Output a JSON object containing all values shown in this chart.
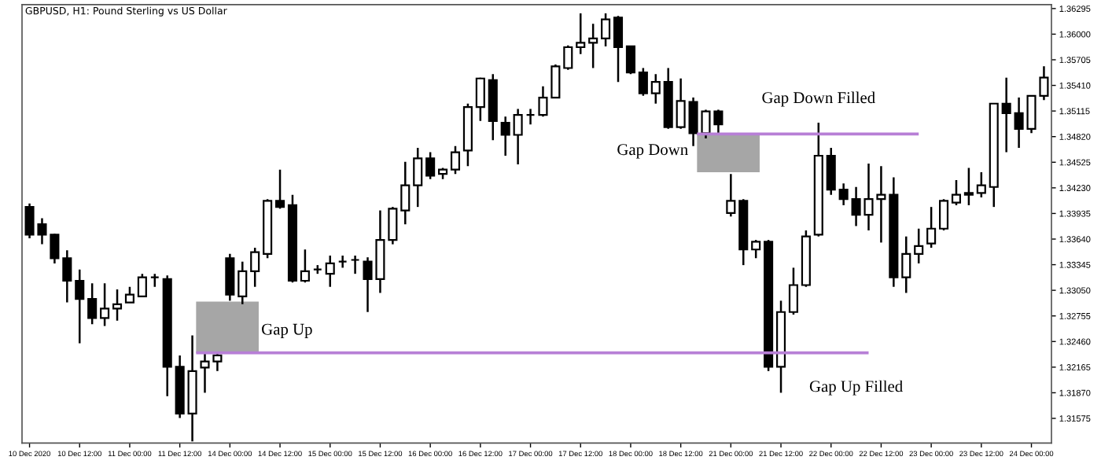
{
  "chart_data": {
    "type": "candlestick",
    "title": "GBPUSD, H1: Pound Sterling vs US Dollar",
    "categories": [
      "10 Dec 2020",
      null,
      null,
      null,
      "10 Dec 12:00",
      null,
      null,
      null,
      "11 Dec 00:00",
      null,
      null,
      null,
      "11 Dec 12:00",
      null,
      null,
      null,
      "14 Dec 00:00",
      null,
      null,
      null,
      "14 Dec 12:00",
      null,
      null,
      null,
      "15 Dec 00:00",
      null,
      null,
      null,
      "15 Dec 12:00",
      null,
      null,
      null,
      "16 Dec 00:00",
      null,
      null,
      null,
      "16 Dec 12:00",
      null,
      null,
      null,
      "17 Dec 00:00",
      null,
      null,
      null,
      "17 Dec 12:00",
      null,
      null,
      null,
      "18 Dec 00:00",
      null,
      null,
      null,
      "18 Dec 12:00",
      null,
      null,
      null,
      "21 Dec 00:00",
      null,
      null,
      null,
      "21 Dec 12:00",
      null,
      null,
      null,
      "22 Dec 00:00",
      null,
      null,
      null,
      "22 Dec 12:00",
      null,
      null,
      null,
      "23 Dec 00:00",
      null,
      null,
      null,
      "23 Dec 12:00",
      null,
      null,
      null,
      "24 Dec 00:00",
      null
    ],
    "ohlc": [
      [
        1.3401,
        1.3405,
        1.3365,
        1.3369
      ],
      [
        1.3381,
        1.3388,
        1.3358,
        1.3369
      ],
      [
        1.3369,
        1.337,
        1.3336,
        1.3342
      ],
      [
        1.3342,
        1.3351,
        1.3291,
        1.3316
      ],
      [
        1.3316,
        1.3329,
        1.3244,
        1.3295
      ],
      [
        1.3295,
        1.3313,
        1.3266,
        1.3273
      ],
      [
        1.3273,
        1.3313,
        1.3264,
        1.3284
      ],
      [
        1.3284,
        1.3306,
        1.327,
        1.3289
      ],
      [
        1.3291,
        1.3309,
        1.3291,
        1.33
      ],
      [
        1.3298,
        1.3324,
        1.3297,
        1.332
      ],
      [
        1.332,
        1.3324,
        1.3309,
        1.332
      ],
      [
        1.3318,
        1.3322,
        1.3183,
        1.3217
      ],
      [
        1.3217,
        1.323,
        1.3158,
        1.3163
      ],
      [
        1.3163,
        1.3253,
        1.3131,
        1.3212
      ],
      [
        1.3216,
        1.3234,
        1.3187,
        1.3223
      ],
      [
        1.3223,
        1.3232,
        1.3212,
        1.323
      ],
      [
        1.3342,
        1.3347,
        1.3293,
        1.33
      ],
      [
        1.3298,
        1.3338,
        1.3289,
        1.3327
      ],
      [
        1.3327,
        1.3354,
        1.3309,
        1.3349
      ],
      [
        1.3347,
        1.341,
        1.3342,
        1.3408
      ],
      [
        1.3408,
        1.3444,
        1.3399,
        1.3401
      ],
      [
        1.3403,
        1.3415,
        1.3314,
        1.3316
      ],
      [
        1.3316,
        1.3352,
        1.3314,
        1.3327
      ],
      [
        1.3329,
        1.3334,
        1.3324,
        1.3329
      ],
      [
        1.3324,
        1.3345,
        1.3309,
        1.3336
      ],
      [
        1.3338,
        1.3345,
        1.3331,
        1.3338
      ],
      [
        1.334,
        1.3345,
        1.3324,
        1.334
      ],
      [
        1.3338,
        1.3343,
        1.328,
        1.3318
      ],
      [
        1.3318,
        1.3397,
        1.3302,
        1.3363
      ],
      [
        1.3363,
        1.3401,
        1.3358,
        1.3399
      ],
      [
        1.3397,
        1.3453,
        1.3381,
        1.3426
      ],
      [
        1.3426,
        1.3469,
        1.3401,
        1.3457
      ],
      [
        1.3457,
        1.3464,
        1.3433,
        1.3437
      ],
      [
        1.3439,
        1.3446,
        1.3433,
        1.3444
      ],
      [
        1.3444,
        1.3471,
        1.3439,
        1.3464
      ],
      [
        1.3466,
        1.352,
        1.3448,
        1.3516
      ],
      [
        1.3516,
        1.355,
        1.35,
        1.3549
      ],
      [
        1.3547,
        1.3554,
        1.3478,
        1.35
      ],
      [
        1.3498,
        1.3505,
        1.346,
        1.3484
      ],
      [
        1.3484,
        1.3514,
        1.345,
        1.3507
      ],
      [
        1.3507,
        1.3514,
        1.3496,
        1.3507
      ],
      [
        1.3507,
        1.354,
        1.3505,
        1.3527
      ],
      [
        1.3527,
        1.3565,
        1.3527,
        1.3563
      ],
      [
        1.3561,
        1.3587,
        1.3559,
        1.3585
      ],
      [
        1.3585,
        1.3624,
        1.3577,
        1.359
      ],
      [
        1.359,
        1.3612,
        1.3561,
        1.3595
      ],
      [
        1.3595,
        1.3624,
        1.3586,
        1.3617
      ],
      [
        1.3619,
        1.3621,
        1.3545,
        1.3585
      ],
      [
        1.3586,
        1.3586,
        1.3554,
        1.3556
      ],
      [
        1.3556,
        1.3561,
        1.3529,
        1.3532
      ],
      [
        1.3532,
        1.3554,
        1.352,
        1.3545
      ],
      [
        1.3545,
        1.3561,
        1.3491,
        1.3493
      ],
      [
        1.3493,
        1.3549,
        1.3491,
        1.3523
      ],
      [
        1.3522,
        1.3527,
        1.3471,
        1.3486
      ],
      [
        1.3486,
        1.3513,
        1.348,
        1.3511
      ],
      [
        1.3511,
        1.3513,
        1.3486,
        1.3496
      ],
      [
        1.3394,
        1.3439,
        1.339,
        1.3408
      ],
      [
        1.3408,
        1.341,
        1.3334,
        1.3352
      ],
      [
        1.3352,
        1.3363,
        1.3342,
        1.3361
      ],
      [
        1.3361,
        1.3363,
        1.3212,
        1.3217
      ],
      [
        1.3217,
        1.3293,
        1.3187,
        1.328
      ],
      [
        1.328,
        1.3331,
        1.3277,
        1.3311
      ],
      [
        1.3311,
        1.3374,
        1.3309,
        1.3367
      ],
      [
        1.3369,
        1.3498,
        1.3367,
        1.346
      ],
      [
        1.346,
        1.3469,
        1.3415,
        1.3421
      ],
      [
        1.3421,
        1.3428,
        1.3403,
        1.341
      ],
      [
        1.341,
        1.3424,
        1.3379,
        1.3392
      ],
      [
        1.3392,
        1.3451,
        1.3374,
        1.341
      ],
      [
        1.341,
        1.3448,
        1.336,
        1.3415
      ],
      [
        1.3415,
        1.3435,
        1.3309,
        1.332
      ],
      [
        1.332,
        1.3367,
        1.3302,
        1.3347
      ],
      [
        1.3347,
        1.3376,
        1.3336,
        1.3356
      ],
      [
        1.3359,
        1.3401,
        1.3354,
        1.3376
      ],
      [
        1.3376,
        1.341,
        1.3374,
        1.3408
      ],
      [
        1.3406,
        1.3432,
        1.3403,
        1.3415
      ],
      [
        1.3415,
        1.3446,
        1.3403,
        1.3417
      ],
      [
        1.3417,
        1.3441,
        1.3412,
        1.3426
      ],
      [
        1.3424,
        1.352,
        1.3401,
        1.352
      ],
      [
        1.352,
        1.355,
        1.3464,
        1.3509
      ],
      [
        1.3509,
        1.3527,
        1.3469,
        1.3491
      ],
      [
        1.3491,
        1.3529,
        1.3486,
        1.3529
      ],
      [
        1.3529,
        1.3563,
        1.3524,
        1.355
      ]
    ],
    "color": "#000000",
    "ylim": [
      1.3129,
      1.3634
    ],
    "yticks": [
      {
        "value": 1.31575,
        "label": "1.31575"
      },
      {
        "value": 1.3187,
        "label": "1.31870"
      },
      {
        "value": 1.32165,
        "label": "1.32165"
      },
      {
        "value": 1.3246,
        "label": "1.32460"
      },
      {
        "value": 1.32755,
        "label": "1.32755"
      },
      {
        "value": 1.3305,
        "label": "1.33050"
      },
      {
        "value": 1.33345,
        "label": "1.33345"
      },
      {
        "value": 1.3364,
        "label": "1.33640"
      },
      {
        "value": 1.33935,
        "label": "1.33935"
      },
      {
        "value": 1.3423,
        "label": "1.34230"
      },
      {
        "value": 1.34525,
        "label": "1.34525"
      },
      {
        "value": 1.3482,
        "label": "1.34820"
      },
      {
        "value": 1.35115,
        "label": "1.35115"
      },
      {
        "value": 1.3541,
        "label": "1.35410"
      },
      {
        "value": 1.35705,
        "label": "1.35705"
      },
      {
        "value": 1.36,
        "label": "1.36000"
      },
      {
        "value": 1.36295,
        "label": "1.36295"
      }
    ],
    "bands": [
      {
        "axis": "y",
        "from": 1.3233,
        "to": 1.3292,
        "label": "Gap Up",
        "color": "#a6a6a6"
      },
      {
        "axis": "y",
        "from": 1.3441,
        "to": 1.3486,
        "label": "Gap Down",
        "color": "#a6a6a6"
      }
    ],
    "ref_lines": [
      {
        "axis": "y",
        "value": 1.3233,
        "label": "Gap Up Filled",
        "color": "#b77fd6"
      },
      {
        "axis": "y",
        "value": 1.3485,
        "label": "Gap Down Filled",
        "color": "#b77fd6"
      }
    ],
    "grid": false
  }
}
